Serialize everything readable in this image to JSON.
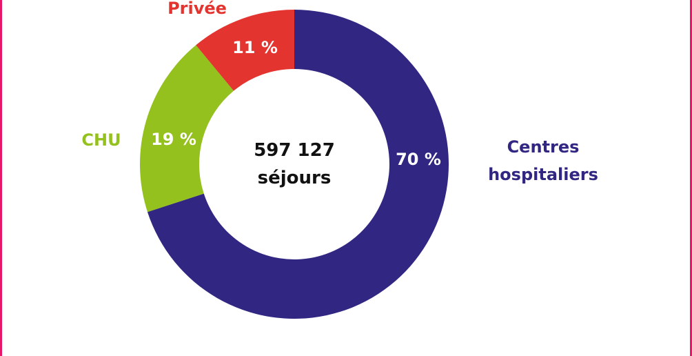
{
  "chart_data": {
    "type": "pie",
    "donut": true,
    "categories": [
      "Centres hospitaliers",
      "CHU",
      "Privée"
    ],
    "values": [
      70,
      19,
      11
    ],
    "value_labels": [
      "70 %",
      "19 %",
      "11 %"
    ],
    "colors": [
      "#312783",
      "#95c11f",
      "#e3342f"
    ],
    "center_text": "597 127 séjours"
  }
}
